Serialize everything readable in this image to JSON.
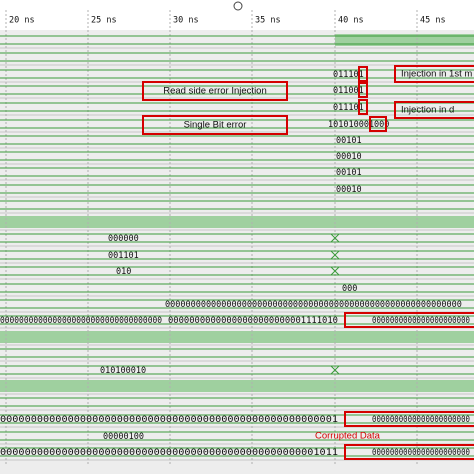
{
  "time_axis": [
    "20 ns",
    "25 ns",
    "30 ns",
    "35 ns",
    "40 ns",
    "45 ns"
  ],
  "rows": [
    {
      "values": []
    },
    {
      "values": []
    },
    {
      "values": [
        "011101"
      ]
    },
    {
      "values": [
        "011001"
      ]
    },
    {
      "values": [
        "011101"
      ]
    },
    {
      "values": [
        "101010001000"
      ]
    },
    {
      "values": [
        "00101"
      ]
    },
    {
      "values": [
        "00010"
      ]
    },
    {
      "values": [
        "00101"
      ]
    },
    {
      "values": [
        "00010"
      ]
    },
    {
      "values": []
    },
    {
      "values": []
    },
    {
      "values": [
        "000000"
      ]
    },
    {
      "values": [
        "001101"
      ]
    },
    {
      "values": [
        "010"
      ]
    },
    {
      "values": [
        "000"
      ]
    },
    {
      "values": [
        "0000000000000000000000000000000000000000000000000000000000"
      ]
    },
    {
      "values": [
        "0000000000000000000000000000000000",
        "00000000000000000000000001111010",
        "0000000000000000000000"
      ]
    },
    {
      "values": []
    },
    {
      "values": []
    },
    {
      "values": [
        "010100010"
      ]
    },
    {
      "values": []
    },
    {
      "values": []
    },
    {
      "values": [
        "0000000000000000000000000000000000000000000000000000001",
        "0000000000000000000000"
      ]
    },
    {
      "values": [
        "00000100"
      ]
    },
    {
      "values": [
        "0000000000000000000000000000000000000000000000000001011",
        "0000000000000000000000"
      ]
    }
  ],
  "annotations": [
    "Injection in 1st m",
    "Read side error Injection",
    "Injection in d",
    "Single Bit error",
    "Corrupted Data"
  ]
}
